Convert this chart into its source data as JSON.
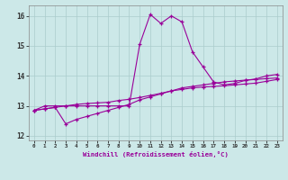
{
  "x": [
    0,
    1,
    2,
    3,
    4,
    5,
    6,
    7,
    8,
    9,
    10,
    11,
    12,
    13,
    14,
    15,
    16,
    17,
    18,
    19,
    20,
    21,
    22,
    23
  ],
  "line1": [
    12.85,
    13.0,
    13.0,
    13.0,
    13.0,
    13.0,
    13.0,
    13.0,
    13.0,
    13.0,
    15.05,
    16.05,
    15.75,
    16.0,
    15.8,
    14.8,
    14.3,
    13.8,
    13.7,
    13.75,
    13.85,
    13.9,
    14.0,
    14.05
  ],
  "line2": [
    12.85,
    12.9,
    12.95,
    12.4,
    12.55,
    12.65,
    12.75,
    12.85,
    12.95,
    13.05,
    13.2,
    13.3,
    13.4,
    13.5,
    13.6,
    13.65,
    13.7,
    13.75,
    13.8,
    13.83,
    13.86,
    13.88,
    13.91,
    13.93
  ],
  "line3": [
    12.85,
    12.9,
    12.95,
    13.0,
    13.05,
    13.08,
    13.1,
    13.12,
    13.18,
    13.22,
    13.28,
    13.35,
    13.42,
    13.5,
    13.55,
    13.6,
    13.63,
    13.65,
    13.67,
    13.7,
    13.73,
    13.76,
    13.82,
    13.88
  ],
  "line_color": "#990099",
  "bg_color": "#cce8e8",
  "grid_color": "#aacccc",
  "xlabel": "Windchill (Refroidissement éolien,°C)",
  "xlim": [
    -0.5,
    23.5
  ],
  "ylim": [
    11.85,
    16.35
  ],
  "yticks": [
    12,
    13,
    14,
    15,
    16
  ],
  "xticks": [
    0,
    1,
    2,
    3,
    4,
    5,
    6,
    7,
    8,
    9,
    10,
    11,
    12,
    13,
    14,
    15,
    16,
    17,
    18,
    19,
    20,
    21,
    22,
    23
  ]
}
